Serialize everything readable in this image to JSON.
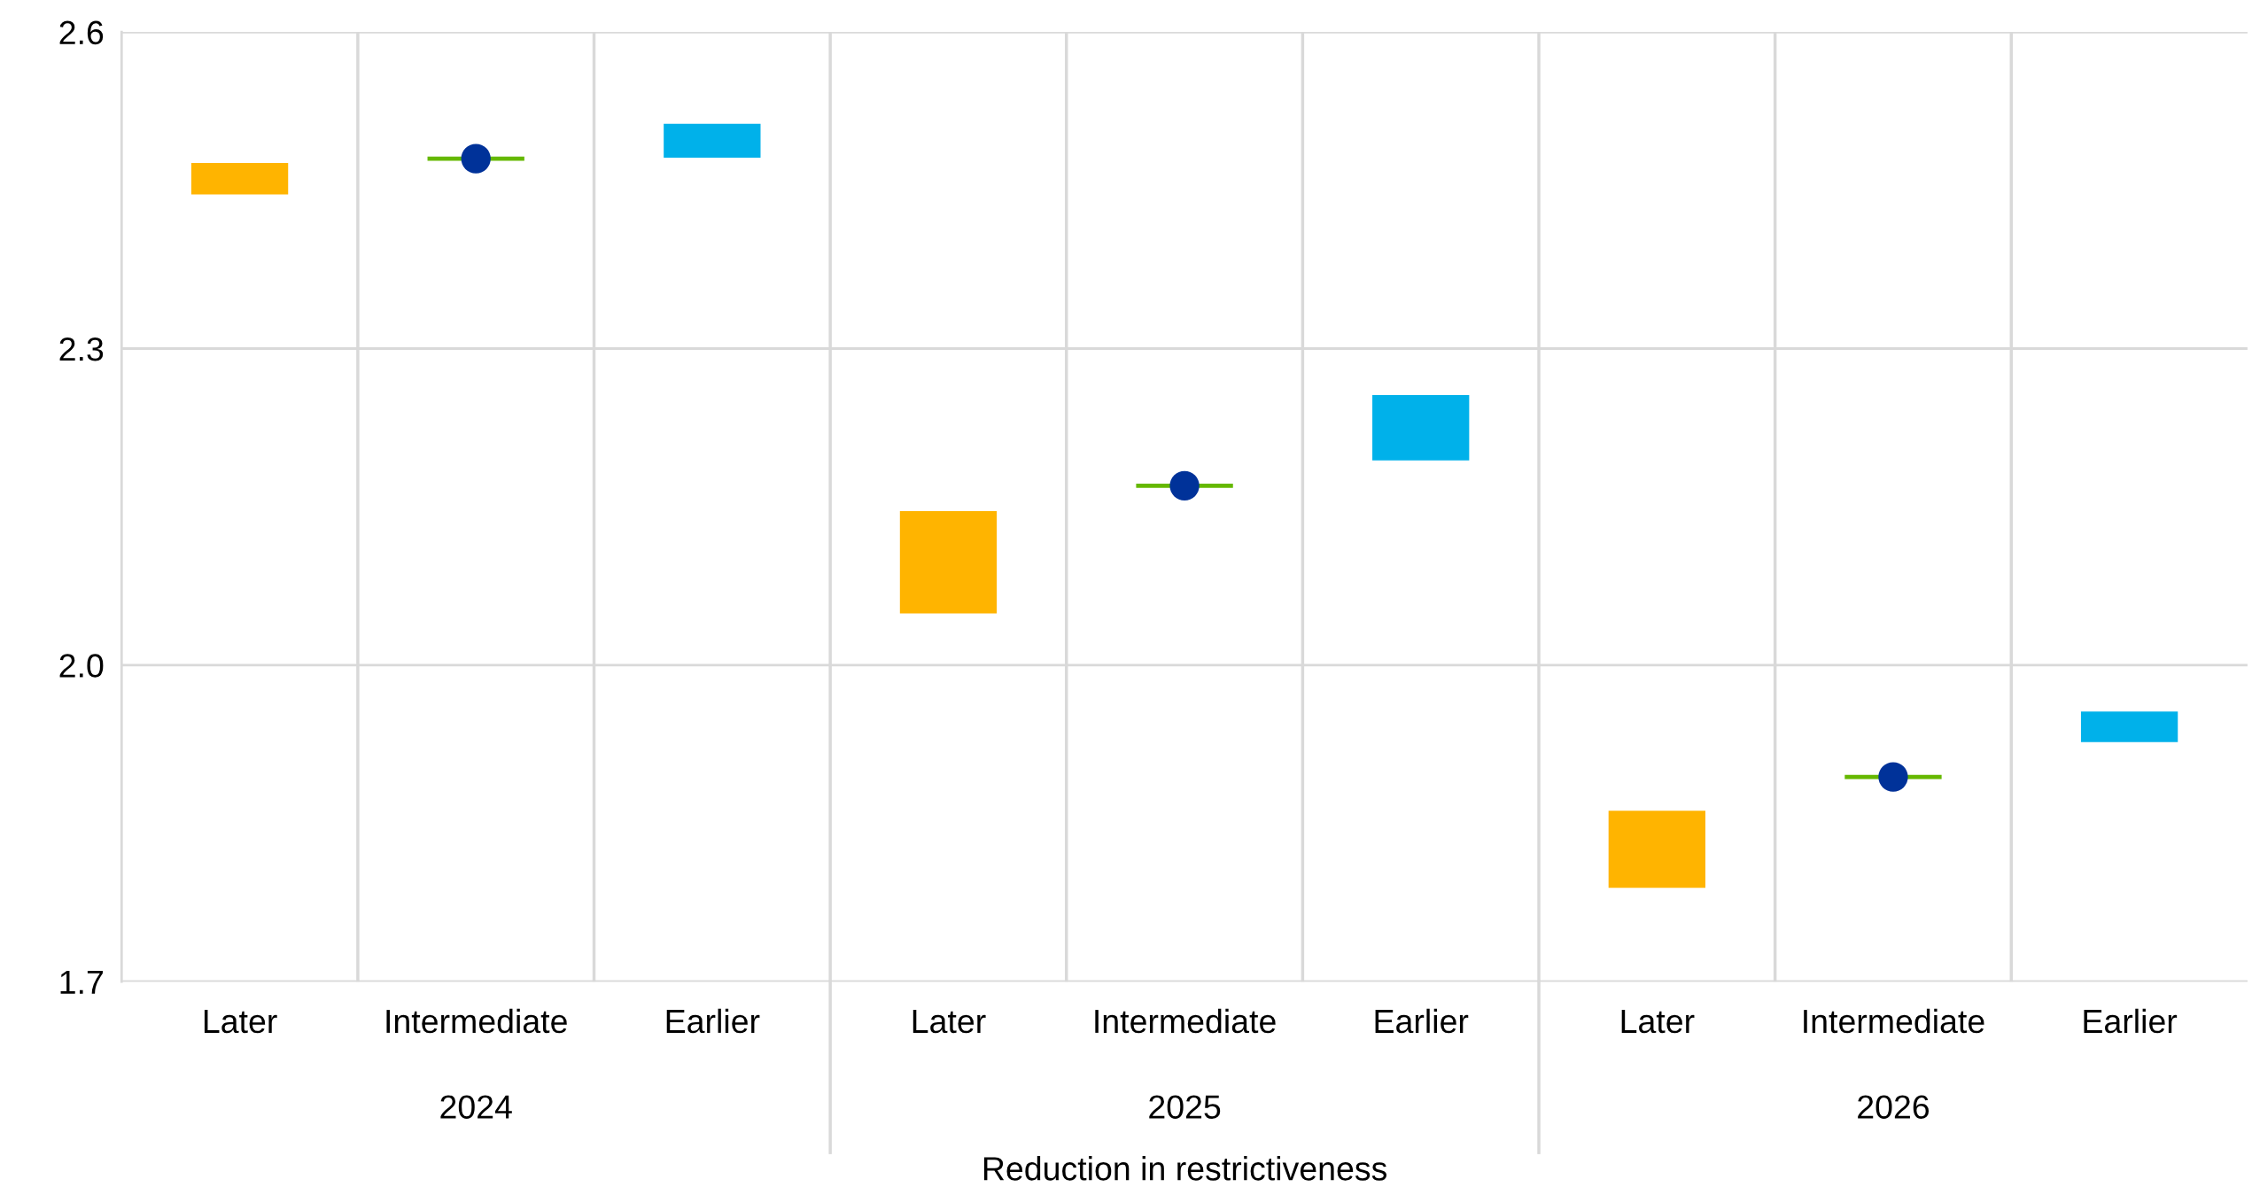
{
  "chart_data": {
    "type": "bar",
    "categories": [
      "Later",
      "Intermediate",
      "Earlier",
      "Later",
      "Intermediate",
      "Earlier",
      "Later",
      "Intermediate",
      "Earlier"
    ],
    "xlabel": "Reduction in restrictiveness",
    "annotations": [
      "2024",
      "2025",
      "2026"
    ],
    "series": [
      {
        "color": "#ffb400",
        "base": [
          2.446,
          null,
          null,
          2.049,
          null,
          null,
          1.789,
          null,
          null
        ],
        "values": [
          0.03,
          null,
          null,
          0.097,
          null,
          null,
          0.073,
          null,
          null
        ]
      },
      {
        "color": "#00b1ea",
        "base": [
          null,
          null,
          2.481,
          null,
          null,
          2.194,
          null,
          null,
          1.927
        ],
        "values": [
          null,
          null,
          0.032,
          null,
          null,
          0.062,
          null,
          null,
          0.029
        ]
      },
      {
        "color": "#65b800",
        "base": [
          null,
          2.478,
          null,
          null,
          2.168,
          null,
          null,
          1.892,
          null
        ],
        "values": [
          null,
          0.004,
          null,
          null,
          0.004,
          null,
          null,
          0.004,
          null
        ]
      },
      {
        "type": "scatter",
        "marker": "circle",
        "color": "#003299",
        "values": [
          null,
          2.48,
          null,
          null,
          2.17,
          null,
          null,
          1.894,
          null
        ]
      }
    ],
    "ylim": [
      1.7,
      2.6
    ],
    "yticks": [
      {
        "value": 1.7,
        "label": "1.7"
      },
      {
        "value": 2.0,
        "label": "2.0"
      },
      {
        "value": 2.3,
        "label": "2.3"
      },
      {
        "value": 2.6,
        "label": "2.6"
      }
    ],
    "grid": "y"
  }
}
